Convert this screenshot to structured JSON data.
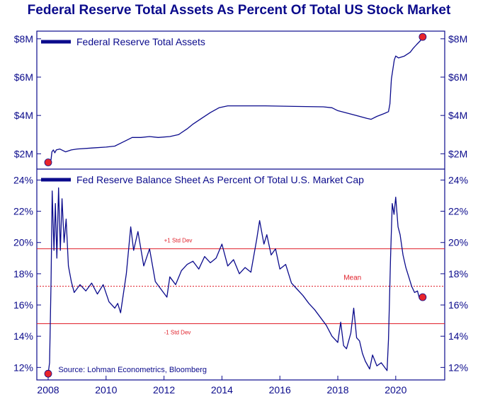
{
  "title": "Federal Reserve Total Assets As Percent Of Total US Stock Market",
  "colors": {
    "series": "#0b0b8c",
    "axis": "#0b0b8c",
    "reference": "#e0202a",
    "marker": "#e8242b",
    "text": "#0b0b8c"
  },
  "chart_data": [
    {
      "type": "line",
      "legend": "Federal Reserve Total Assets",
      "legend_placement": "top-left",
      "grid": false,
      "ylim": [
        1.2,
        8.4
      ],
      "y_ticks": [
        2,
        4,
        6,
        8
      ],
      "y_tick_labels": [
        "$2M",
        "$4M",
        "$6M",
        "$8M"
      ],
      "xlim": [
        2008,
        2021.3
      ],
      "series": [
        {
          "values": [
            [
              2008.0,
              1.55
            ],
            [
              2008.05,
              1.6
            ],
            [
              2008.1,
              1.7
            ],
            [
              2008.13,
              2.1
            ],
            [
              2008.18,
              2.2
            ],
            [
              2008.23,
              2.05
            ],
            [
              2008.28,
              2.2
            ],
            [
              2008.4,
              2.25
            ],
            [
              2008.6,
              2.1
            ],
            [
              2008.8,
              2.2
            ],
            [
              2009.0,
              2.25
            ],
            [
              2009.5,
              2.3
            ],
            [
              2010.0,
              2.35
            ],
            [
              2010.3,
              2.4
            ],
            [
              2010.5,
              2.55
            ],
            [
              2010.7,
              2.7
            ],
            [
              2010.9,
              2.85
            ],
            [
              2011.2,
              2.85
            ],
            [
              2011.5,
              2.9
            ],
            [
              2011.8,
              2.85
            ],
            [
              2012.2,
              2.9
            ],
            [
              2012.5,
              3.0
            ],
            [
              2012.8,
              3.3
            ],
            [
              2013.0,
              3.55
            ],
            [
              2013.3,
              3.85
            ],
            [
              2013.6,
              4.15
            ],
            [
              2013.9,
              4.4
            ],
            [
              2014.2,
              4.5
            ],
            [
              2014.6,
              4.5
            ],
            [
              2015.5,
              4.5
            ],
            [
              2016.5,
              4.47
            ],
            [
              2017.5,
              4.45
            ],
            [
              2017.8,
              4.4
            ],
            [
              2018.0,
              4.25
            ],
            [
              2018.5,
              4.05
            ],
            [
              2019.0,
              3.85
            ],
            [
              2019.15,
              3.8
            ],
            [
              2019.35,
              3.95
            ],
            [
              2019.6,
              4.1
            ],
            [
              2019.75,
              4.2
            ],
            [
              2019.8,
              4.6
            ],
            [
              2019.85,
              5.9
            ],
            [
              2019.95,
              6.9
            ],
            [
              2020.0,
              7.1
            ],
            [
              2020.1,
              7.0
            ],
            [
              2020.3,
              7.1
            ],
            [
              2020.5,
              7.3
            ],
            [
              2020.6,
              7.5
            ],
            [
              2020.72,
              7.7
            ],
            [
              2020.85,
              7.9
            ],
            [
              2020.93,
              8.1
            ]
          ]
        }
      ],
      "markers": [
        [
          2008.0,
          1.55
        ],
        [
          2020.93,
          8.1
        ]
      ]
    },
    {
      "type": "line",
      "legend": "Fed Reserve Balance Sheet As Percent Of Total U.S. Market Cap",
      "legend_placement": "top-left",
      "grid": false,
      "ylim": [
        11.2,
        24.7
      ],
      "y_ticks": [
        12,
        14,
        16,
        18,
        20,
        22,
        24
      ],
      "y_tick_labels": [
        "12%",
        "14%",
        "16%",
        "18%",
        "20%",
        "22%",
        "24%"
      ],
      "xlim": [
        2008,
        2021.3
      ],
      "x_ticks": [
        2008,
        2010,
        2012,
        2014,
        2016,
        2018,
        2020
      ],
      "x_tick_labels": [
        "2008",
        "2010",
        "2012",
        "2014",
        "2016",
        "2018",
        "2020"
      ],
      "reference_lines": [
        {
          "y": 19.6,
          "label": "+1 Std Dev",
          "style": "solid"
        },
        {
          "y": 17.2,
          "label": "Mean",
          "style": "dotted"
        },
        {
          "y": 14.8,
          "label": "-1 Std Dev",
          "style": "solid"
        }
      ],
      "annotation": "Source: Lohman Econometrics, Bloomberg",
      "series": [
        {
          "values": [
            [
              2008.0,
              11.6
            ],
            [
              2008.05,
              12.3
            ],
            [
              2008.1,
              17.5
            ],
            [
              2008.14,
              23.3
            ],
            [
              2008.2,
              19.5
            ],
            [
              2008.25,
              22.5
            ],
            [
              2008.3,
              19.0
            ],
            [
              2008.36,
              23.5
            ],
            [
              2008.42,
              19.5
            ],
            [
              2008.48,
              22.8
            ],
            [
              2008.55,
              20.0
            ],
            [
              2008.62,
              21.5
            ],
            [
              2008.7,
              18.5
            ],
            [
              2008.8,
              17.5
            ],
            [
              2008.9,
              16.8
            ],
            [
              2009.1,
              17.3
            ],
            [
              2009.3,
              16.9
            ],
            [
              2009.5,
              17.4
            ],
            [
              2009.7,
              16.7
            ],
            [
              2009.9,
              17.3
            ],
            [
              2010.1,
              16.2
            ],
            [
              2010.3,
              15.8
            ],
            [
              2010.4,
              16.1
            ],
            [
              2010.5,
              15.5
            ],
            [
              2010.7,
              18.0
            ],
            [
              2010.85,
              21.0
            ],
            [
              2010.95,
              19.5
            ],
            [
              2011.1,
              20.7
            ],
            [
              2011.3,
              18.5
            ],
            [
              2011.5,
              19.6
            ],
            [
              2011.7,
              17.5
            ],
            [
              2011.9,
              17.0
            ],
            [
              2012.1,
              16.5
            ],
            [
              2012.2,
              17.8
            ],
            [
              2012.4,
              17.3
            ],
            [
              2012.6,
              18.2
            ],
            [
              2012.8,
              18.6
            ],
            [
              2013.0,
              18.8
            ],
            [
              2013.2,
              18.3
            ],
            [
              2013.4,
              19.1
            ],
            [
              2013.6,
              18.7
            ],
            [
              2013.8,
              19.0
            ],
            [
              2014.0,
              19.9
            ],
            [
              2014.2,
              18.5
            ],
            [
              2014.4,
              18.9
            ],
            [
              2014.6,
              18.0
            ],
            [
              2014.8,
              18.4
            ],
            [
              2015.0,
              18.1
            ],
            [
              2015.2,
              20.2
            ],
            [
              2015.3,
              21.4
            ],
            [
              2015.45,
              19.9
            ],
            [
              2015.55,
              20.5
            ],
            [
              2015.7,
              19.2
            ],
            [
              2015.85,
              19.6
            ],
            [
              2016.0,
              18.3
            ],
            [
              2016.2,
              18.6
            ],
            [
              2016.4,
              17.4
            ],
            [
              2016.6,
              17.0
            ],
            [
              2016.8,
              16.6
            ],
            [
              2017.0,
              16.1
            ],
            [
              2017.2,
              15.7
            ],
            [
              2017.4,
              15.2
            ],
            [
              2017.6,
              14.7
            ],
            [
              2017.8,
              14.0
            ],
            [
              2018.0,
              13.6
            ],
            [
              2018.1,
              14.9
            ],
            [
              2018.2,
              13.4
            ],
            [
              2018.3,
              13.2
            ],
            [
              2018.45,
              14.2
            ],
            [
              2018.55,
              15.8
            ],
            [
              2018.65,
              13.9
            ],
            [
              2018.75,
              13.7
            ],
            [
              2018.85,
              12.9
            ],
            [
              2018.95,
              12.4
            ],
            [
              2019.1,
              11.9
            ],
            [
              2019.2,
              12.8
            ],
            [
              2019.35,
              12.1
            ],
            [
              2019.5,
              12.3
            ],
            [
              2019.7,
              11.8
            ],
            [
              2019.75,
              13.8
            ],
            [
              2019.82,
              19.0
            ],
            [
              2019.88,
              22.5
            ],
            [
              2019.94,
              21.8
            ],
            [
              2020.0,
              22.9
            ],
            [
              2020.08,
              21.0
            ],
            [
              2020.15,
              20.5
            ],
            [
              2020.25,
              19.2
            ],
            [
              2020.35,
              18.4
            ],
            [
              2020.45,
              17.8
            ],
            [
              2020.55,
              17.2
            ],
            [
              2020.65,
              16.8
            ],
            [
              2020.75,
              16.9
            ],
            [
              2020.82,
              16.4
            ],
            [
              2020.93,
              16.5
            ]
          ]
        }
      ],
      "markers": [
        [
          2008.0,
          11.6
        ],
        [
          2020.93,
          16.5
        ]
      ]
    }
  ]
}
